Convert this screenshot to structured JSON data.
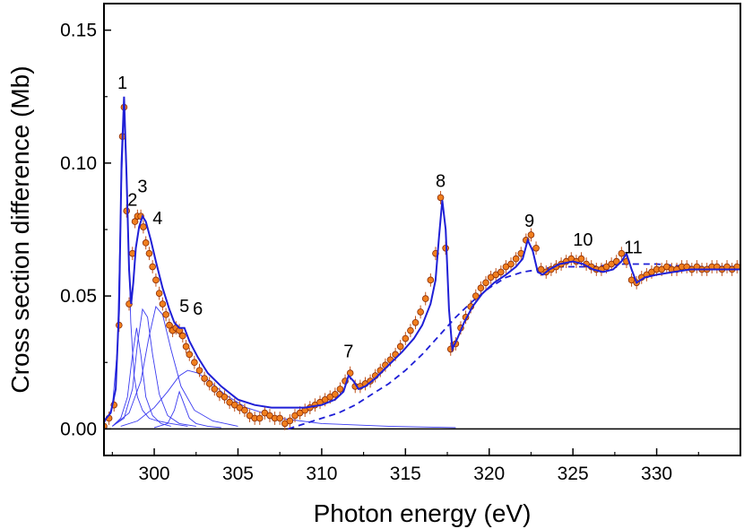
{
  "chart_data": {
    "type": "scatter",
    "title": "",
    "xlabel": "Photon energy (eV)",
    "ylabel": "Cross section difference (Mb)",
    "xlim": [
      297,
      335
    ],
    "ylim": [
      -0.01,
      0.16
    ],
    "x_ticks": [
      300,
      305,
      310,
      315,
      320,
      325,
      330
    ],
    "x_tick_labels": [
      "300",
      "305",
      "310",
      "315",
      "320",
      "325",
      "330"
    ],
    "y_ticks": [
      0.0,
      0.05,
      0.1,
      0.15
    ],
    "y_tick_labels": [
      "0.00",
      "0.05",
      "0.10",
      "0.15"
    ],
    "grid": false,
    "legend": "none",
    "colors": {
      "fit": "#1f1fd6",
      "component": "#3a3af0",
      "marker_fill": "#f07f1e",
      "marker_edge": "#8a2a06",
      "errorbar": "#c0521a",
      "baseline": "#000000"
    },
    "peak_labels": [
      {
        "text": "1",
        "x": 298.1,
        "y": 0.128
      },
      {
        "text": "2",
        "x": 298.7,
        "y": 0.084
      },
      {
        "text": "3",
        "x": 299.3,
        "y": 0.089
      },
      {
        "text": "4",
        "x": 300.2,
        "y": 0.077
      },
      {
        "text": "5",
        "x": 301.8,
        "y": 0.044
      },
      {
        "text": "6",
        "x": 302.6,
        "y": 0.043
      },
      {
        "text": "7",
        "x": 311.6,
        "y": 0.027
      },
      {
        "text": "8",
        "x": 317.1,
        "y": 0.091
      },
      {
        "text": "9",
        "x": 322.4,
        "y": 0.076
      },
      {
        "text": "10",
        "x": 325.6,
        "y": 0.069
      },
      {
        "text": "11",
        "x": 328.6,
        "y": 0.066
      }
    ],
    "series": [
      {
        "style": "markers-with-errorbars",
        "x": [
          297.0,
          297.3,
          297.6,
          297.9,
          298.1,
          298.2,
          298.35,
          298.5,
          298.7,
          298.85,
          299.0,
          299.2,
          299.35,
          299.5,
          299.7,
          299.9,
          300.1,
          300.3,
          300.5,
          300.7,
          300.9,
          301.1,
          301.3,
          301.5,
          301.7,
          301.9,
          302.1,
          302.4,
          302.7,
          303.0,
          303.3,
          303.6,
          303.9,
          304.2,
          304.5,
          304.8,
          305.1,
          305.4,
          305.7,
          306.0,
          306.3,
          306.6,
          306.9,
          307.2,
          307.5,
          307.8,
          308.1,
          308.4,
          308.7,
          309.0,
          309.3,
          309.6,
          309.9,
          310.2,
          310.5,
          310.8,
          311.1,
          311.4,
          311.7,
          312.0,
          312.3,
          312.6,
          312.9,
          313.2,
          313.5,
          313.8,
          314.1,
          314.4,
          314.7,
          315.0,
          315.3,
          315.6,
          315.9,
          316.2,
          316.5,
          316.8,
          317.1,
          317.4,
          317.7,
          318.0,
          318.3,
          318.6,
          318.9,
          319.2,
          319.5,
          319.8,
          320.1,
          320.4,
          320.7,
          321.0,
          321.3,
          321.6,
          321.9,
          322.2,
          322.5,
          322.8,
          323.1,
          323.4,
          323.7,
          324.0,
          324.3,
          324.6,
          324.9,
          325.2,
          325.5,
          325.8,
          326.1,
          326.4,
          326.7,
          327.0,
          327.3,
          327.6,
          327.9,
          328.2,
          328.5,
          328.8,
          329.1,
          329.4,
          329.7,
          330.0,
          330.3,
          330.6,
          330.9,
          331.2,
          331.5,
          331.8,
          332.1,
          332.4,
          332.7,
          333.0,
          333.3,
          333.6,
          333.9,
          334.2,
          334.5,
          334.8
        ],
        "y": [
          0.001,
          0.004,
          0.009,
          0.039,
          0.11,
          0.121,
          0.082,
          0.047,
          0.066,
          0.078,
          0.08,
          0.08,
          0.076,
          0.07,
          0.066,
          0.061,
          0.056,
          0.051,
          0.047,
          0.043,
          0.039,
          0.037,
          0.038,
          0.037,
          0.035,
          0.031,
          0.028,
          0.025,
          0.022,
          0.019,
          0.017,
          0.015,
          0.013,
          0.012,
          0.01,
          0.009,
          0.008,
          0.007,
          0.005,
          0.004,
          0.004,
          0.006,
          0.005,
          0.004,
          0.004,
          0.002,
          0.003,
          0.005,
          0.006,
          0.007,
          0.008,
          0.009,
          0.01,
          0.011,
          0.012,
          0.013,
          0.015,
          0.018,
          0.021,
          0.016,
          0.016,
          0.017,
          0.018,
          0.02,
          0.022,
          0.024,
          0.026,
          0.028,
          0.031,
          0.034,
          0.037,
          0.04,
          0.044,
          0.049,
          0.056,
          0.066,
          0.087,
          0.068,
          0.03,
          0.032,
          0.038,
          0.042,
          0.046,
          0.05,
          0.053,
          0.055,
          0.057,
          0.058,
          0.059,
          0.061,
          0.062,
          0.064,
          0.066,
          0.071,
          0.073,
          0.068,
          0.06,
          0.059,
          0.06,
          0.061,
          0.062,
          0.063,
          0.064,
          0.063,
          0.064,
          0.062,
          0.061,
          0.06,
          0.06,
          0.061,
          0.062,
          0.063,
          0.066,
          0.063,
          0.056,
          0.055,
          0.057,
          0.058,
          0.059,
          0.06,
          0.06,
          0.061,
          0.06,
          0.06,
          0.061,
          0.061,
          0.06,
          0.061,
          0.06,
          0.06,
          0.061,
          0.061,
          0.06,
          0.061,
          0.06,
          0.061
        ]
      },
      {
        "style": "fit-solid",
        "x": [
          297.0,
          297.4,
          297.7,
          297.9,
          298.05,
          298.2,
          298.35,
          298.5,
          298.62,
          298.75,
          298.9,
          299.1,
          299.3,
          299.5,
          299.8,
          300.1,
          300.5,
          300.9,
          301.2,
          301.5,
          301.8,
          302.1,
          302.6,
          303.2,
          304.0,
          305.0,
          306.0,
          307.0,
          308.0,
          309.0,
          310.0,
          310.8,
          311.3,
          311.6,
          311.9,
          312.2,
          312.6,
          313.2,
          314.0,
          314.8,
          315.5,
          316.0,
          316.5,
          316.8,
          317.0,
          317.2,
          317.4,
          317.6,
          317.8,
          318.1,
          318.5,
          319.0,
          319.6,
          320.3,
          321.0,
          321.6,
          322.0,
          322.3,
          322.6,
          322.9,
          323.2,
          323.6,
          324.2,
          325.0,
          325.6,
          326.2,
          326.8,
          327.4,
          327.9,
          328.2,
          328.5,
          328.8,
          329.3,
          330.0,
          331.0,
          332.0,
          333.0,
          334.0,
          335.0
        ],
        "y": [
          0.003,
          0.006,
          0.015,
          0.045,
          0.1,
          0.125,
          0.095,
          0.06,
          0.047,
          0.055,
          0.068,
          0.076,
          0.08,
          0.078,
          0.071,
          0.063,
          0.053,
          0.045,
          0.04,
          0.038,
          0.038,
          0.033,
          0.027,
          0.021,
          0.016,
          0.011,
          0.009,
          0.008,
          0.008,
          0.008,
          0.009,
          0.011,
          0.014,
          0.02,
          0.018,
          0.015,
          0.016,
          0.019,
          0.024,
          0.029,
          0.034,
          0.039,
          0.047,
          0.056,
          0.072,
          0.086,
          0.075,
          0.045,
          0.03,
          0.034,
          0.04,
          0.046,
          0.051,
          0.055,
          0.058,
          0.061,
          0.064,
          0.071,
          0.067,
          0.059,
          0.058,
          0.06,
          0.062,
          0.063,
          0.062,
          0.06,
          0.059,
          0.06,
          0.063,
          0.066,
          0.06,
          0.055,
          0.057,
          0.058,
          0.059,
          0.06,
          0.06,
          0.06,
          0.06
        ]
      },
      {
        "style": "fit-dashed",
        "x": [
          308.0,
          309.0,
          310.0,
          311.0,
          312.0,
          313.0,
          314.0,
          315.0,
          316.0,
          317.0,
          318.0,
          319.0,
          320.0,
          321.0,
          322.0,
          323.0,
          324.0,
          326.0,
          328.0,
          330.0,
          332.0,
          334.0,
          335.0
        ],
        "y": [
          0.0,
          0.002,
          0.004,
          0.006,
          0.009,
          0.013,
          0.017,
          0.022,
          0.028,
          0.035,
          0.042,
          0.048,
          0.053,
          0.057,
          0.059,
          0.06,
          0.061,
          0.061,
          0.062,
          0.062,
          0.061,
          0.061,
          0.061
        ]
      },
      {
        "style": "component",
        "x": [
          297.0,
          297.5,
          297.8,
          298.0,
          298.2,
          298.4,
          298.6,
          298.8,
          299.0,
          299.3,
          299.7,
          300.2,
          301.0,
          302.0
        ],
        "y": [
          0.002,
          0.008,
          0.03,
          0.085,
          0.118,
          0.085,
          0.04,
          0.02,
          0.012,
          0.007,
          0.004,
          0.003,
          0.002,
          0.001
        ]
      },
      {
        "style": "component",
        "x": [
          297.5,
          298.0,
          298.4,
          298.7,
          298.95,
          299.2,
          299.5,
          299.9,
          300.4,
          301.0
        ],
        "y": [
          0.001,
          0.004,
          0.012,
          0.028,
          0.038,
          0.028,
          0.012,
          0.005,
          0.002,
          0.001
        ]
      },
      {
        "style": "component",
        "x": [
          297.5,
          298.2,
          298.7,
          299.0,
          299.3,
          299.6,
          299.9,
          300.3,
          300.8,
          301.5,
          302.5
        ],
        "y": [
          0.001,
          0.004,
          0.015,
          0.032,
          0.045,
          0.042,
          0.028,
          0.013,
          0.005,
          0.002,
          0.001
        ]
      },
      {
        "style": "component",
        "x": [
          297.5,
          298.5,
          299.2,
          299.7,
          300.1,
          300.5,
          301.0,
          301.6,
          302.4,
          303.5,
          305.0
        ],
        "y": [
          0.001,
          0.006,
          0.018,
          0.035,
          0.046,
          0.043,
          0.03,
          0.016,
          0.007,
          0.003,
          0.001
        ]
      },
      {
        "style": "component",
        "x": [
          300.0,
          300.8,
          301.2,
          301.5,
          301.8,
          302.1,
          302.5,
          303.2,
          304.0
        ],
        "y": [
          0.0005,
          0.002,
          0.007,
          0.014,
          0.009,
          0.004,
          0.002,
          0.001,
          0.0005
        ]
      },
      {
        "style": "component",
        "x": [
          298.0,
          299.0,
          300.0,
          300.8,
          301.5,
          302.0,
          302.6,
          303.3,
          304.2,
          305.5,
          307.5,
          310.0,
          314.0,
          318.0
        ],
        "y": [
          0.001,
          0.003,
          0.008,
          0.014,
          0.02,
          0.022,
          0.021,
          0.018,
          0.013,
          0.008,
          0.004,
          0.002,
          0.001,
          0.0005
        ]
      }
    ]
  }
}
